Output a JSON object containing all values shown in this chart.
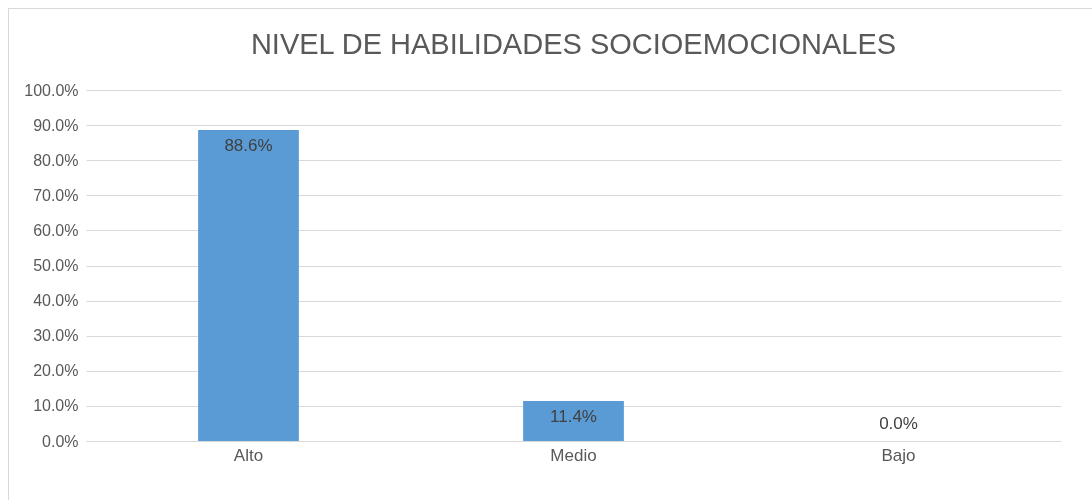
{
  "chart_data": {
    "type": "bar",
    "title": "NIVEL DE HABILIDADES SOCIOEMOCIONALES",
    "categories": [
      "Alto",
      "Medio",
      "Bajo"
    ],
    "values": [
      88.6,
      11.4,
      0.0
    ],
    "value_labels": [
      "88.6%",
      "11.4%",
      "0.0%"
    ],
    "color": "#5b9bd5",
    "ylim": [
      0,
      100
    ],
    "yticks": [
      {
        "value": 0,
        "label": "0.0%"
      },
      {
        "value": 10,
        "label": "10.0%"
      },
      {
        "value": 20,
        "label": "20.0%"
      },
      {
        "value": 30,
        "label": "30.0%"
      },
      {
        "value": 40,
        "label": "40.0%"
      },
      {
        "value": 50,
        "label": "50.0%"
      },
      {
        "value": 60,
        "label": "60.0%"
      },
      {
        "value": 70,
        "label": "70.0%"
      },
      {
        "value": 80,
        "label": "80.0%"
      },
      {
        "value": 90,
        "label": "90.0%"
      },
      {
        "value": 100,
        "label": "100.0%"
      }
    ],
    "grid": "y"
  }
}
